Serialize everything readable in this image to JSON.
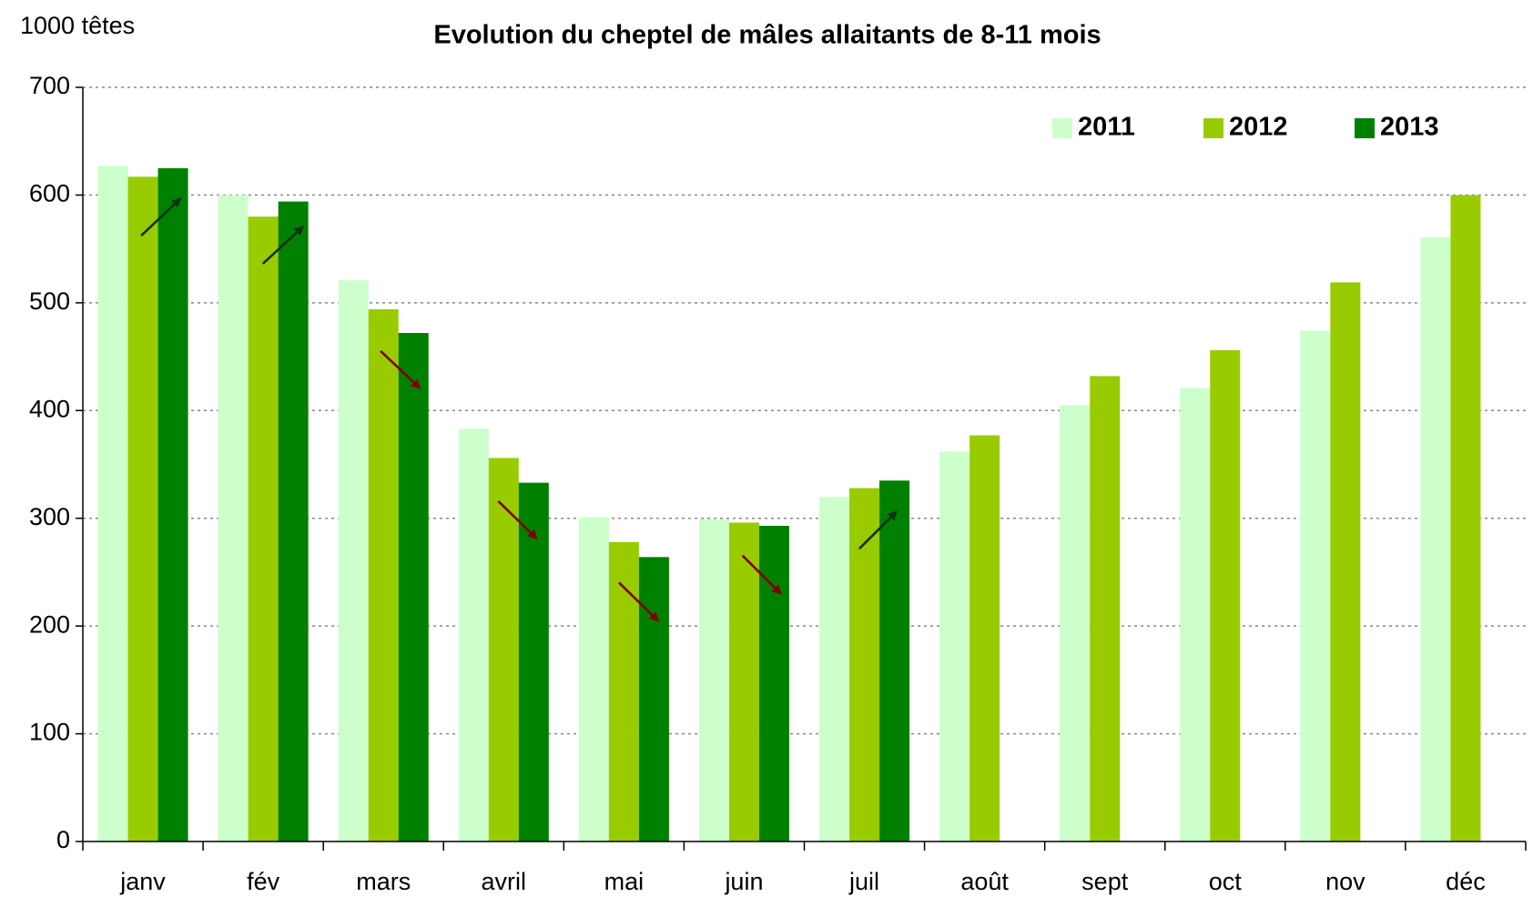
{
  "chart_data": {
    "type": "bar",
    "title": "Evolution du cheptel de mâles allaitants de 8-11 mois",
    "y_axis_label": "1000 têtes",
    "categories": [
      "janv",
      "fév",
      "mars",
      "avril",
      "mai",
      "juin",
      "juil",
      "août",
      "sept",
      "oct",
      "nov",
      "déc"
    ],
    "series": [
      {
        "name": "2011",
        "color": "#ccffcc",
        "values": [
          627,
          600,
          521,
          383,
          301,
          299,
          320,
          362,
          405,
          421,
          474,
          561
        ]
      },
      {
        "name": "2012",
        "color": "#99cc00",
        "values": [
          617,
          580,
          494,
          356,
          278,
          296,
          328,
          377,
          432,
          456,
          519,
          600
        ]
      },
      {
        "name": "2013",
        "color": "#008000",
        "values": [
          625,
          594,
          472,
          333,
          264,
          293,
          335,
          null,
          null,
          null,
          null,
          null
        ]
      }
    ],
    "ylim": [
      0,
      700
    ],
    "yticks": [
      0,
      100,
      200,
      300,
      400,
      500,
      600,
      700
    ],
    "grid": true,
    "legend": "top-right"
  }
}
